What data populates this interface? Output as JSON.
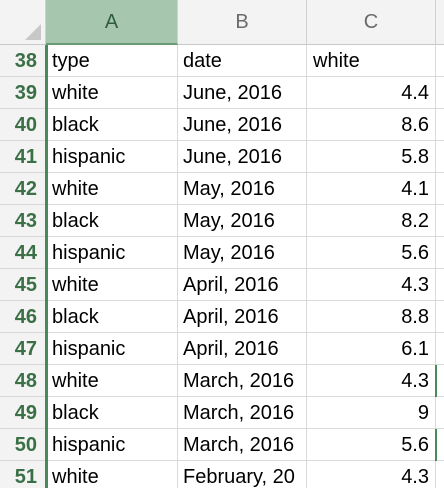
{
  "columns": {
    "a": "A",
    "b": "B",
    "c": "C"
  },
  "rows": [
    {
      "num": "38",
      "type": "type",
      "date": "date",
      "value": "white"
    },
    {
      "num": "39",
      "type": "white",
      "date": "June, 2016",
      "value": "4.4"
    },
    {
      "num": "40",
      "type": "black",
      "date": "June, 2016",
      "value": "8.6"
    },
    {
      "num": "41",
      "type": "hispanic",
      "date": "June, 2016",
      "value": "5.8"
    },
    {
      "num": "42",
      "type": "white",
      "date": "May, 2016",
      "value": "4.1"
    },
    {
      "num": "43",
      "type": "black",
      "date": "May, 2016",
      "value": "8.2"
    },
    {
      "num": "44",
      "type": "hispanic",
      "date": "May, 2016",
      "value": "5.6"
    },
    {
      "num": "45",
      "type": "white",
      "date": "April, 2016",
      "value": "4.3"
    },
    {
      "num": "46",
      "type": "black",
      "date": "April, 2016",
      "value": "8.8"
    },
    {
      "num": "47",
      "type": "hispanic",
      "date": "April, 2016",
      "value": "6.1"
    },
    {
      "num": "48",
      "type": "white",
      "date": "March, 2016",
      "value": "4.3"
    },
    {
      "num": "49",
      "type": "black",
      "date": "March, 2016",
      "value": "9"
    },
    {
      "num": "50",
      "type": "hispanic",
      "date": "March, 2016",
      "value": "5.6"
    },
    {
      "num": "51",
      "type": "white",
      "date": "February, 20",
      "value": "4.3"
    }
  ],
  "colors": {
    "selected_header": "#a6c7ae",
    "row_number_text": "#3b6f46",
    "selection_edge": "#4a8a5a"
  }
}
